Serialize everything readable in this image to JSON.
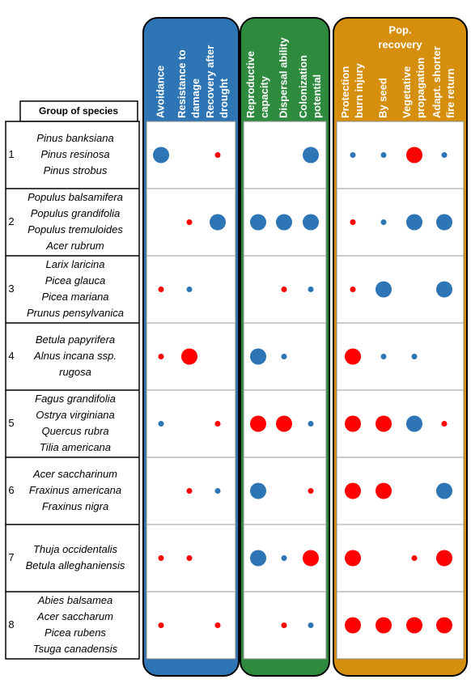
{
  "table_header": "Group of species",
  "panels": [
    {
      "color": "#2e75b6",
      "columns": [
        [
          "Avoidance"
        ],
        [
          "Resistance to",
          "damage"
        ],
        [
          "Recovery after",
          "drought"
        ]
      ]
    },
    {
      "color": "#2e8b3e",
      "columns": [
        [
          "Reproductive",
          "capacity"
        ],
        [
          "Dispersal ability"
        ],
        [
          "Colonization",
          "potential"
        ]
      ]
    },
    {
      "color": "#d68f0c",
      "title": [
        "Pop.",
        "recovery"
      ],
      "columns": [
        [
          "Protection",
          "burn injury"
        ],
        [
          "By seed"
        ],
        [
          "Vegetative",
          "propagation"
        ],
        [
          "Adapt. shorter",
          "fire return"
        ]
      ]
    }
  ],
  "dot_colors": {
    "red": "#ff0000",
    "blue": "#2e75b6"
  },
  "rows": [
    {
      "number": "1",
      "species": [
        "Pinus banksiana",
        "Pinus resinosa",
        "Pinus strobus"
      ],
      "dots": [
        {
          "color": "blue",
          "large": true
        },
        null,
        {
          "color": "red",
          "large": false
        },
        null,
        null,
        {
          "color": "blue",
          "large": true
        },
        {
          "color": "blue",
          "large": false
        },
        {
          "color": "blue",
          "large": false
        },
        {
          "color": "red",
          "large": true
        },
        {
          "color": "blue",
          "large": false
        }
      ]
    },
    {
      "number": "2",
      "species": [
        "Populus balsamifera",
        "Populus grandifolia",
        "Populus tremuloides",
        "Acer rubrum"
      ],
      "dots": [
        null,
        {
          "color": "red",
          "large": false
        },
        {
          "color": "blue",
          "large": true
        },
        {
          "color": "blue",
          "large": true
        },
        {
          "color": "blue",
          "large": true
        },
        {
          "color": "blue",
          "large": true
        },
        {
          "color": "red",
          "large": false
        },
        {
          "color": "blue",
          "large": false
        },
        {
          "color": "blue",
          "large": true
        },
        {
          "color": "blue",
          "large": true
        }
      ]
    },
    {
      "number": "3",
      "species": [
        "Larix laricina",
        "Picea glauca",
        "Picea mariana",
        "Prunus pensylvanica"
      ],
      "dots": [
        {
          "color": "red",
          "large": false
        },
        {
          "color": "blue",
          "large": false
        },
        null,
        null,
        {
          "color": "red",
          "large": false
        },
        {
          "color": "blue",
          "large": false
        },
        {
          "color": "red",
          "large": false
        },
        {
          "color": "blue",
          "large": true
        },
        null,
        {
          "color": "blue",
          "large": true
        }
      ]
    },
    {
      "number": "4",
      "species": [
        "Betula papyrifera",
        "Alnus incana ssp.",
        "rugosa"
      ],
      "dots": [
        {
          "color": "red",
          "large": false
        },
        {
          "color": "red",
          "large": true
        },
        null,
        {
          "color": "blue",
          "large": true
        },
        {
          "color": "blue",
          "large": false
        },
        null,
        {
          "color": "red",
          "large": true
        },
        {
          "color": "blue",
          "large": false
        },
        {
          "color": "blue",
          "large": false
        },
        null
      ]
    },
    {
      "number": "5",
      "species": [
        "Fagus grandifolia",
        "Ostrya virginiana",
        "Quercus rubra",
        "Tilia americana"
      ],
      "dots": [
        {
          "color": "blue",
          "large": false
        },
        null,
        {
          "color": "red",
          "large": false
        },
        {
          "color": "red",
          "large": true
        },
        {
          "color": "red",
          "large": true
        },
        {
          "color": "blue",
          "large": false
        },
        {
          "color": "red",
          "large": true
        },
        {
          "color": "red",
          "large": true
        },
        {
          "color": "blue",
          "large": true
        },
        {
          "color": "red",
          "large": false
        }
      ]
    },
    {
      "number": "6",
      "species": [
        "Acer saccharinum",
        "Fraxinus americana",
        "Fraxinus nigra"
      ],
      "dots": [
        null,
        {
          "color": "red",
          "large": false
        },
        {
          "color": "blue",
          "large": false
        },
        {
          "color": "blue",
          "large": true
        },
        null,
        {
          "color": "red",
          "large": false
        },
        {
          "color": "red",
          "large": true
        },
        {
          "color": "red",
          "large": true
        },
        null,
        {
          "color": "blue",
          "large": true
        }
      ]
    },
    {
      "number": "7",
      "species": [
        "Thuja occidentalis",
        "Betula alleghaniensis"
      ],
      "dots": [
        {
          "color": "red",
          "large": false
        },
        {
          "color": "red",
          "large": false
        },
        null,
        {
          "color": "blue",
          "large": true
        },
        {
          "color": "blue",
          "large": false
        },
        {
          "color": "red",
          "large": true
        },
        {
          "color": "red",
          "large": true
        },
        null,
        {
          "color": "red",
          "large": false
        },
        {
          "color": "red",
          "large": true
        }
      ]
    },
    {
      "number": "8",
      "species": [
        "Abies balsamea",
        "Acer saccharum",
        "Picea rubens",
        "Tsuga canadensis"
      ],
      "dots": [
        {
          "color": "red",
          "large": false
        },
        null,
        {
          "color": "red",
          "large": false
        },
        null,
        {
          "color": "red",
          "large": false
        },
        {
          "color": "blue",
          "large": false
        },
        {
          "color": "red",
          "large": true
        },
        {
          "color": "red",
          "large": true
        },
        {
          "color": "red",
          "large": true
        },
        {
          "color": "red",
          "large": true
        }
      ]
    }
  ]
}
